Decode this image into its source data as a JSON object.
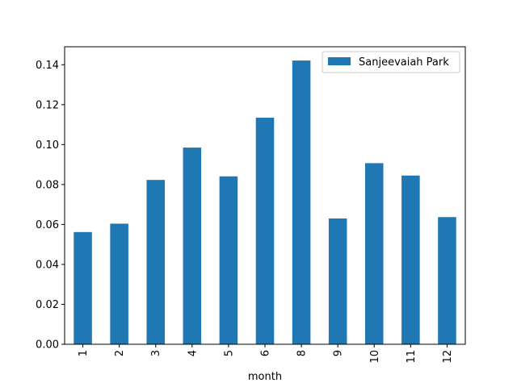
{
  "chart_data": {
    "type": "bar",
    "categories": [
      "1",
      "2",
      "3",
      "4",
      "5",
      "6",
      "8",
      "9",
      "10",
      "11",
      "12"
    ],
    "series": [
      {
        "name": "Sanjeevaiah Park",
        "color": "#1f77b4",
        "values": [
          0.0562,
          0.0604,
          0.0823,
          0.0985,
          0.0841,
          0.1135,
          0.1421,
          0.063,
          0.0907,
          0.0845,
          0.0637
        ]
      }
    ],
    "xlabel": "month",
    "ylabel": "",
    "ylim": [
      0,
      0.149
    ],
    "yticks": [
      "0.00",
      "0.02",
      "0.04",
      "0.06",
      "0.08",
      "0.10",
      "0.12",
      "0.14"
    ],
    "ytick_values": [
      0,
      0.02,
      0.04,
      0.06,
      0.08,
      0.1,
      0.12,
      0.14
    ],
    "legend_position": "top-right",
    "grid": false
  }
}
